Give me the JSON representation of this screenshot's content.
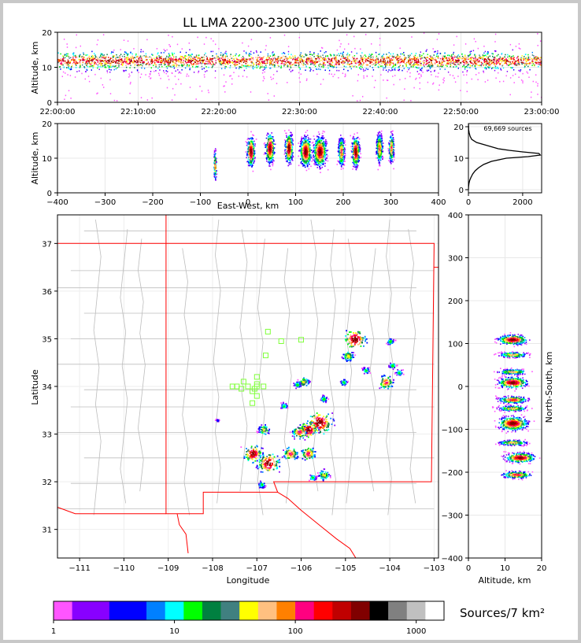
{
  "title": "LL LMA 2200-2300 UTC July 27, 2025",
  "colors": {
    "stateLine": "#ff0000",
    "countyLine": "#bdbdbd",
    "stationMarker": "#7fff3a"
  },
  "chart_data": [
    {
      "id": "time-altitude",
      "type": "scatter",
      "xlabel": "",
      "ylabel": "Altitude, km",
      "ylim": [
        0,
        20
      ],
      "yticks": [
        "0",
        "10",
        "20"
      ],
      "xticks": [
        "22:00:00",
        "22:10:00",
        "22:20:00",
        "22:30:00",
        "22:40:00",
        "22:50:00",
        "23:00:00"
      ],
      "xlim_minutes": [
        0,
        60
      ],
      "density_core_km": [
        9,
        15
      ]
    },
    {
      "id": "eastwest-altitude",
      "type": "heatmap",
      "xlabel": "East-West, km",
      "ylabel": "Altitude, km",
      "xlim": [
        -400,
        400
      ],
      "ylim": [
        0,
        20
      ],
      "xticks": [
        "−400",
        "−300",
        "−200",
        "−100",
        "0",
        "100",
        "200",
        "300",
        "400"
      ],
      "yticks": [
        "0",
        "10",
        "20"
      ],
      "clusters_km": [
        [
          -70,
          8,
          4
        ],
        [
          5,
          12,
          12
        ],
        [
          45,
          13,
          14
        ],
        [
          85,
          13,
          12
        ],
        [
          120,
          12,
          18
        ],
        [
          150,
          12,
          20
        ],
        [
          195,
          12,
          10
        ],
        [
          225,
          12,
          12
        ],
        [
          275,
          13,
          10
        ],
        [
          300,
          13,
          8
        ]
      ]
    },
    {
      "id": "altitude-histogram",
      "type": "line",
      "annotation": "69,669 sources",
      "xlim": [
        0,
        2700
      ],
      "ylim": [
        -1,
        21
      ],
      "xticks": [
        "0",
        "2000"
      ],
      "yticks": [
        "0",
        "10",
        "20"
      ],
      "profile": [
        [
          0,
          0
        ],
        [
          1,
          5
        ],
        [
          2,
          20
        ],
        [
          3,
          50
        ],
        [
          4,
          100
        ],
        [
          5,
          160
        ],
        [
          6,
          250
        ],
        [
          7,
          380
        ],
        [
          8,
          560
        ],
        [
          9,
          850
        ],
        [
          10,
          1400
        ],
        [
          10.5,
          2200
        ],
        [
          11,
          2650
        ],
        [
          11.5,
          2600
        ],
        [
          12,
          2000
        ],
        [
          12.5,
          1500
        ],
        [
          13,
          1100
        ],
        [
          14,
          700
        ],
        [
          15,
          300
        ],
        [
          16,
          120
        ],
        [
          17,
          60
        ],
        [
          18,
          30
        ],
        [
          19,
          10
        ],
        [
          20,
          5
        ],
        [
          21,
          0
        ]
      ]
    },
    {
      "id": "plan-view-map",
      "type": "heatmap",
      "xlabel": "Longitude",
      "ylabel": "Latitude",
      "xlim": [
        -111.5,
        -102.9
      ],
      "ylim": [
        30.4,
        37.6
      ],
      "xticks": [
        "−111",
        "−110",
        "−109",
        "−108",
        "−107",
        "−106",
        "−105",
        "−104",
        "−103"
      ],
      "yticks": [
        "31",
        "32",
        "33",
        "34",
        "35",
        "36",
        "37"
      ],
      "storms": [
        [
          -104.8,
          35.0,
          6
        ],
        [
          -104.95,
          34.65,
          3
        ],
        [
          -104.55,
          34.35,
          2
        ],
        [
          -104.1,
          34.1,
          4
        ],
        [
          -103.95,
          34.45,
          2
        ],
        [
          -103.8,
          34.3,
          2
        ],
        [
          -104.0,
          34.95,
          2
        ],
        [
          -105.05,
          34.1,
          2
        ],
        [
          -105.95,
          34.1,
          3
        ],
        [
          -106.1,
          34.05,
          2
        ],
        [
          -105.6,
          33.25,
          7
        ],
        [
          -105.85,
          33.1,
          5
        ],
        [
          -106.05,
          33.05,
          4
        ],
        [
          -105.5,
          33.75,
          2
        ],
        [
          -106.4,
          33.6,
          2
        ],
        [
          -106.85,
          33.1,
          3
        ],
        [
          -107.1,
          32.6,
          5
        ],
        [
          -106.75,
          32.4,
          6
        ],
        [
          -106.25,
          32.6,
          4
        ],
        [
          -105.85,
          32.6,
          4
        ],
        [
          -105.5,
          32.15,
          3
        ],
        [
          -105.75,
          32.1,
          2
        ],
        [
          -106.9,
          31.95,
          2
        ],
        [
          -107.9,
          33.3,
          1
        ]
      ],
      "stations": [
        [
          -106.75,
          35.15
        ],
        [
          -106.45,
          34.95
        ],
        [
          -106.0,
          34.98
        ],
        [
          -106.8,
          34.65
        ],
        [
          -107.0,
          34.2
        ],
        [
          -107.3,
          34.1
        ],
        [
          -107.45,
          34.0
        ],
        [
          -107.35,
          33.95
        ],
        [
          -107.2,
          34.0
        ],
        [
          -107.0,
          34.05
        ],
        [
          -106.85,
          34.0
        ],
        [
          -107.05,
          33.95
        ],
        [
          -107.1,
          33.9
        ],
        [
          -107.0,
          33.8
        ],
        [
          -107.1,
          33.65
        ],
        [
          -107.55,
          34.0
        ],
        [
          -107.0,
          34.0
        ]
      ]
    },
    {
      "id": "altitude-northsouth",
      "type": "heatmap",
      "xlabel": "Altitude, km",
      "ylabel": "North-South, km",
      "xlim": [
        0,
        20
      ],
      "ylim": [
        -400,
        400
      ],
      "xticks": [
        "0",
        "10",
        "20"
      ],
      "yticks": [
        "−400",
        "−300",
        "−200",
        "−100",
        "0",
        "100",
        "200",
        "300",
        "400"
      ],
      "bands_km": [
        [
          110,
          12,
          14
        ],
        [
          75,
          12,
          8
        ],
        [
          35,
          12,
          8
        ],
        [
          10,
          12,
          16
        ],
        [
          -30,
          12,
          10
        ],
        [
          -50,
          12,
          8
        ],
        [
          -85,
          12,
          20
        ],
        [
          -130,
          12,
          8
        ],
        [
          -165,
          14,
          14
        ],
        [
          -205,
          13,
          10
        ]
      ]
    },
    {
      "id": "colorbar",
      "type": "bar",
      "label": "Sources/7 km²",
      "ticks": [
        "1",
        "10",
        "100",
        "1000"
      ],
      "colors": [
        "#ff55ff",
        "#8800ff",
        "#8800ff",
        "#0000ff",
        "#0000ff",
        "#0080ff",
        "#00ffff",
        "#00ff00",
        "#008040",
        "#408080",
        "#ffff00",
        "#ffc080",
        "#ff8000",
        "#ff0080",
        "#ff0000",
        "#c00000",
        "#800000",
        "#000000",
        "#808080",
        "#c0c0c0",
        "#ffffff"
      ]
    }
  ]
}
